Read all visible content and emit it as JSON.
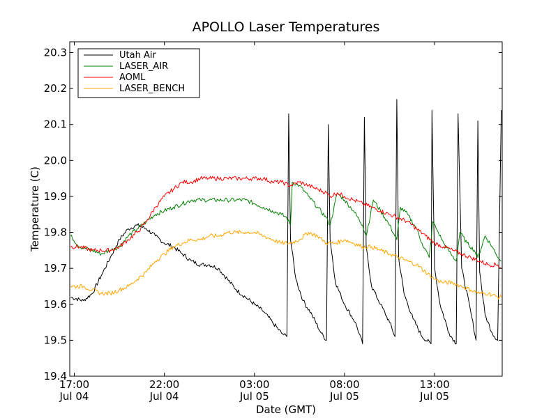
{
  "chart_data": {
    "type": "line",
    "title": "APOLLO Laser Temperatures",
    "xlabel": "Date (GMT)",
    "ylabel": "Temperature (C)",
    "x_unit": "hours since Jul 04 17:00",
    "xlim": [
      -0.25,
      23.75
    ],
    "ylim": [
      19.4,
      20.33
    ],
    "yticks": [
      19.4,
      19.5,
      19.6,
      19.7,
      19.8,
      19.9,
      20.0,
      20.1,
      20.2,
      20.3
    ],
    "ytick_labels": [
      "19.4",
      "19.5",
      "19.6",
      "19.7",
      "19.8",
      "19.9",
      "20.0",
      "20.1",
      "20.2",
      "20.3"
    ],
    "xticks": [
      {
        "value": 0,
        "line1": "17:00",
        "line2": "Jul 04"
      },
      {
        "value": 5,
        "line1": "22:00",
        "line2": "Jul 04"
      },
      {
        "value": 10,
        "line1": "03:00",
        "line2": "Jul 05"
      },
      {
        "value": 15,
        "line1": "08:00",
        "line2": "Jul 05"
      },
      {
        "value": 20,
        "line1": "13:00",
        "line2": "Jul 05"
      }
    ],
    "legend_position": "top-left",
    "series": [
      {
        "name": "Utah Air",
        "color": "#000000",
        "x": [
          -0.2,
          0.5,
          1.0,
          1.5,
          2.0,
          2.5,
          3.0,
          3.5,
          4.0,
          4.5,
          5.0,
          5.5,
          6.0,
          6.5,
          7.0,
          7.5,
          8.0,
          8.5,
          9.0,
          9.5,
          10.0,
          10.5,
          11.0,
          11.5,
          11.8,
          11.9,
          12.0,
          12.3,
          12.7,
          13.2,
          13.7,
          14.0,
          14.1,
          14.2,
          14.5,
          15.0,
          15.6,
          16.0,
          16.1,
          16.2,
          16.5,
          17.0,
          17.5,
          17.8,
          17.9,
          18.0,
          18.3,
          18.8,
          19.3,
          19.8,
          19.85,
          20.0,
          20.3,
          20.8,
          21.2,
          21.3,
          21.5,
          22.0,
          22.3,
          22.4,
          22.5,
          22.8,
          23.2,
          23.5,
          23.7
        ],
        "y": [
          19.62,
          19.61,
          19.63,
          19.68,
          19.73,
          19.78,
          19.81,
          19.82,
          19.81,
          19.79,
          19.77,
          19.76,
          19.74,
          19.72,
          19.71,
          19.71,
          19.7,
          19.67,
          19.64,
          19.62,
          19.6,
          19.58,
          19.55,
          19.52,
          19.51,
          20.13,
          19.78,
          19.67,
          19.61,
          19.57,
          19.52,
          19.5,
          20.1,
          19.78,
          19.66,
          19.6,
          19.55,
          19.49,
          20.12,
          19.76,
          19.65,
          19.6,
          19.55,
          19.51,
          20.17,
          19.73,
          19.63,
          19.56,
          19.51,
          19.49,
          20.14,
          19.7,
          19.6,
          19.52,
          19.49,
          20.13,
          19.7,
          19.58,
          19.5,
          20.11,
          19.69,
          19.57,
          19.52,
          19.5,
          20.14
        ]
      },
      {
        "name": "LASER_AIR",
        "color": "#008000",
        "x": [
          -0.2,
          0.3,
          1.0,
          1.5,
          2.0,
          2.5,
          3.0,
          3.5,
          4.0,
          4.5,
          5.0,
          5.5,
          6.0,
          6.5,
          7.0,
          7.5,
          8.0,
          8.5,
          9.0,
          9.5,
          10.0,
          10.5,
          11.0,
          11.5,
          11.8,
          12.0,
          12.1,
          12.5,
          13.0,
          13.5,
          14.0,
          14.2,
          14.6,
          15.0,
          15.5,
          16.0,
          16.2,
          16.6,
          17.0,
          17.5,
          17.9,
          18.1,
          18.5,
          19.0,
          19.3,
          19.7,
          19.9,
          20.2,
          20.5,
          20.9,
          21.2,
          21.4,
          21.8,
          22.2,
          22.4,
          22.8,
          23.2,
          23.4,
          23.7
        ],
        "y": [
          19.79,
          19.76,
          19.75,
          19.74,
          19.75,
          19.76,
          19.79,
          19.81,
          19.83,
          19.85,
          19.86,
          19.87,
          19.88,
          19.89,
          19.89,
          19.89,
          19.89,
          19.89,
          19.89,
          19.89,
          19.88,
          19.87,
          19.86,
          19.85,
          19.84,
          19.82,
          19.94,
          19.93,
          19.9,
          19.87,
          19.84,
          19.82,
          19.91,
          19.89,
          19.86,
          19.82,
          19.79,
          19.89,
          19.86,
          19.82,
          19.78,
          19.87,
          19.85,
          19.81,
          19.77,
          19.73,
          19.83,
          19.8,
          19.77,
          19.74,
          19.72,
          19.8,
          19.77,
          19.75,
          19.73,
          19.79,
          19.76,
          19.74,
          19.72
        ]
      },
      {
        "name": "AOML",
        "color": "#ff0000",
        "x": [
          -0.2,
          0.3,
          1.0,
          1.5,
          2.0,
          2.5,
          3.0,
          3.5,
          4.0,
          4.5,
          5.0,
          5.5,
          6.0,
          6.5,
          7.0,
          7.5,
          8.0,
          8.5,
          9.0,
          9.5,
          10.0,
          10.5,
          11.0,
          11.5,
          12.0,
          12.5,
          13.0,
          13.5,
          14.0,
          14.2,
          14.6,
          15.0,
          15.5,
          16.0,
          16.5,
          17.0,
          17.5,
          18.0,
          18.5,
          19.0,
          19.5,
          20.0,
          20.5,
          21.0,
          21.5,
          22.0,
          22.5,
          23.0,
          23.5,
          23.7
        ],
        "y": [
          19.76,
          19.76,
          19.75,
          19.75,
          19.75,
          19.76,
          19.78,
          19.8,
          19.83,
          19.87,
          19.9,
          19.92,
          19.94,
          19.94,
          19.95,
          19.95,
          19.95,
          19.95,
          19.95,
          19.95,
          19.95,
          19.95,
          19.94,
          19.94,
          19.93,
          19.94,
          19.93,
          19.92,
          19.91,
          19.9,
          19.91,
          19.9,
          19.89,
          19.88,
          19.87,
          19.86,
          19.85,
          19.84,
          19.83,
          19.81,
          19.79,
          19.77,
          19.76,
          19.75,
          19.74,
          19.73,
          19.72,
          19.71,
          19.71,
          19.7
        ]
      },
      {
        "name": "LASER_BENCH",
        "color": "#ffa500",
        "x": [
          -0.2,
          0.5,
          1.0,
          1.5,
          2.0,
          2.5,
          3.0,
          3.5,
          4.0,
          4.5,
          5.0,
          5.5,
          6.0,
          6.5,
          7.0,
          7.5,
          8.0,
          8.5,
          9.0,
          9.5,
          10.0,
          10.5,
          11.0,
          11.5,
          12.0,
          12.5,
          13.0,
          13.5,
          14.0,
          14.5,
          15.0,
          15.5,
          16.0,
          16.5,
          17.0,
          17.5,
          18.0,
          18.5,
          19.0,
          19.5,
          20.0,
          20.5,
          21.0,
          21.5,
          22.0,
          22.5,
          23.0,
          23.5,
          23.7
        ],
        "y": [
          19.65,
          19.65,
          19.64,
          19.63,
          19.63,
          19.64,
          19.65,
          19.67,
          19.69,
          19.72,
          19.74,
          19.76,
          19.77,
          19.78,
          19.78,
          19.79,
          19.79,
          19.8,
          19.8,
          19.8,
          19.8,
          19.79,
          19.78,
          19.77,
          19.77,
          19.78,
          19.8,
          19.79,
          19.77,
          19.77,
          19.78,
          19.77,
          19.76,
          19.76,
          19.75,
          19.74,
          19.73,
          19.72,
          19.71,
          19.69,
          19.67,
          19.66,
          19.66,
          19.65,
          19.64,
          19.63,
          19.63,
          19.62,
          19.62
        ]
      }
    ]
  }
}
